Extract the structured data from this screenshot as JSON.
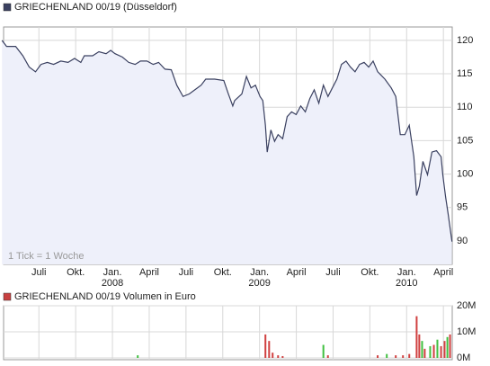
{
  "chart_data": [
    {
      "type": "area",
      "annotation": "1 Tick = 1 Woche",
      "series": [
        {
          "name": "GRIECHENLAND 00/19 (Düsseldorf)",
          "color": "#3a4060",
          "fill": "#eef0fa",
          "x": [
            2007.249,
            2007.28,
            2007.342,
            2007.391,
            2007.434,
            2007.477,
            2007.514,
            2007.557,
            2007.6,
            2007.649,
            2007.698,
            2007.742,
            2007.785,
            2007.809,
            2007.865,
            2007.908,
            2007.957,
            2007.988,
            2008.018,
            2008.068,
            2008.111,
            2008.154,
            2008.191,
            2008.234,
            2008.277,
            2008.314,
            2008.357,
            2008.4,
            2008.437,
            2008.48,
            2008.523,
            2008.56,
            2008.603,
            2008.634,
            2008.695,
            2008.757,
            2008.788,
            2008.818,
            2008.831,
            2008.88,
            2008.911,
            2008.942,
            2008.972,
            2009.003,
            2009.022,
            2009.04,
            2009.052,
            2009.077,
            2009.102,
            2009.126,
            2009.157,
            2009.188,
            2009.218,
            2009.249,
            2009.28,
            2009.311,
            2009.342,
            2009.372,
            2009.403,
            2009.434,
            2009.465,
            2009.495,
            2009.526,
            2009.557,
            2009.588,
            2009.618,
            2009.649,
            2009.68,
            2009.711,
            2009.742,
            2009.772,
            2009.803,
            2009.852,
            2009.895,
            2009.926,
            2009.957,
            2009.988,
            2010.018,
            2010.049,
            2010.068,
            2010.086,
            2010.111,
            2010.142,
            2010.172,
            2010.203,
            2010.234,
            2010.246,
            2010.265,
            2010.283,
            2010.308
          ],
          "values": [
            120.0,
            119.1,
            119.1,
            117.7,
            116.0,
            115.3,
            116.4,
            116.7,
            116.4,
            116.9,
            116.7,
            117.3,
            116.7,
            117.7,
            117.7,
            118.3,
            118.0,
            118.5,
            118.0,
            117.5,
            116.7,
            116.4,
            116.9,
            116.9,
            116.4,
            116.7,
            115.7,
            115.6,
            113.3,
            111.6,
            112.0,
            112.6,
            113.3,
            114.2,
            114.2,
            114.0,
            112.0,
            110.2,
            111.0,
            112.0,
            114.6,
            112.9,
            113.3,
            111.6,
            111.0,
            107.3,
            103.3,
            106.6,
            104.9,
            105.9,
            105.3,
            108.6,
            109.3,
            108.9,
            110.2,
            109.3,
            111.3,
            112.6,
            110.6,
            113.3,
            111.6,
            112.9,
            114.2,
            116.4,
            116.9,
            116.0,
            115.3,
            116.4,
            116.7,
            116.0,
            116.9,
            115.3,
            114.2,
            112.9,
            111.6,
            105.9,
            105.9,
            107.3,
            102.6,
            96.8,
            98.2,
            101.9,
            99.9,
            103.3,
            103.5,
            102.6,
            99.9,
            96.6,
            93.9,
            89.9
          ]
        }
      ],
      "xlim": [
        2007.26,
        2010.31
      ],
      "xticks": [
        {
          "value": 2007.5,
          "label": "Juli"
        },
        {
          "value": 2007.75,
          "label": "Okt."
        },
        {
          "value": 2008.0,
          "label": "Jan."
        },
        {
          "value": 2008.25,
          "label": "April"
        },
        {
          "value": 2008.5,
          "label": "Juli"
        },
        {
          "value": 2008.75,
          "label": "Okt."
        },
        {
          "value": 2009.0,
          "label": "Jan."
        },
        {
          "value": 2009.25,
          "label": "April"
        },
        {
          "value": 2009.5,
          "label": "Juli"
        },
        {
          "value": 2009.75,
          "label": "Okt."
        },
        {
          "value": 2010.0,
          "label": "Jan."
        },
        {
          "value": 2010.25,
          "label": "April"
        }
      ],
      "xtick_years": [
        2008,
        2009,
        2010
      ],
      "ylim": [
        86.5,
        122
      ],
      "yticks": [
        90,
        95,
        100,
        105,
        110,
        115,
        120
      ],
      "grid": true
    },
    {
      "type": "bar",
      "series": [
        {
          "name": "GRIECHENLAND 00/19 Volumen in Euro",
          "color": "#c84040",
          "x": [
            2008.172,
            2009.04,
            2009.065,
            2009.089,
            2009.126,
            2009.157,
            2009.434,
            2009.465,
            2009.803,
            2009.865,
            2009.926,
            2009.975,
            2010.018,
            2010.068,
            2010.086,
            2010.105,
            2010.123,
            2010.16,
            2010.185,
            2010.209,
            2010.234,
            2010.258,
            2010.277,
            2010.295
          ],
          "values": [
            1000000,
            9000000,
            6500000,
            2000000,
            1000000,
            700000,
            5000000,
            1000000,
            1000000,
            1500000,
            1000000,
            1000000,
            1500000,
            16000000,
            9000000,
            6500000,
            3500000,
            4500000,
            5000000,
            7000000,
            4500000,
            6500000,
            8000000,
            9000000
          ],
          "bar_colors": [
            "#40c040",
            "#d04040",
            "#d04040",
            "#d04040",
            "#d04040",
            "#d04040",
            "#40c040",
            "#d04040",
            "#d04040",
            "#40c040",
            "#d04040",
            "#d04040",
            "#d04040",
            "#d04040",
            "#d04040",
            "#40c040",
            "#d04040",
            "#40c040",
            "#d04040",
            "#40c040",
            "#d04040",
            "#d04040",
            "#40c040",
            "#d04040"
          ]
        }
      ],
      "xlim": [
        2007.26,
        2010.31
      ],
      "ylim": [
        0,
        20000000
      ],
      "yticks": [
        {
          "value": 0,
          "label": "0M"
        },
        {
          "value": 10000000,
          "label": "10M"
        },
        {
          "value": 20000000,
          "label": "20M"
        }
      ],
      "grid": true
    }
  ]
}
